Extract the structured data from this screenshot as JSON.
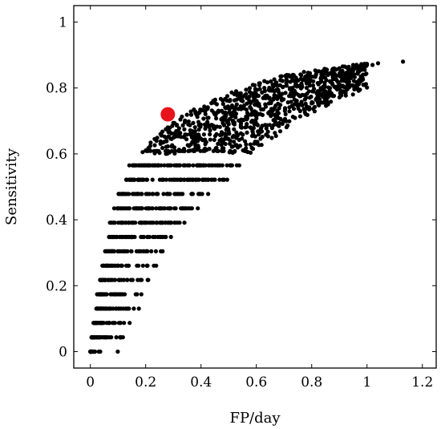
{
  "chart_data": {
    "type": "scatter",
    "title": "",
    "xlabel": "FP/day",
    "ylabel": "Sensitivity",
    "xlim": [
      -0.06,
      1.25
    ],
    "ylim": [
      -0.05,
      1.05
    ],
    "xticks": [
      0,
      0.2,
      0.4,
      0.6,
      0.8,
      1,
      1.2
    ],
    "yticks": [
      0,
      0.2,
      0.4,
      0.6,
      0.8,
      1
    ],
    "xtick_labels": [
      "0",
      "0.2",
      "0.4",
      "0.6",
      "0.8",
      "1",
      "1.2"
    ],
    "ytick_labels": [
      "0",
      "0.2",
      "0.4",
      "0.6",
      "0.8",
      "1"
    ],
    "grid": false,
    "legend": "none",
    "series": [
      {
        "marker": "small-dot",
        "color": "#000000",
        "description_points": "dense cloud; approximate upper envelope listed",
        "envelope_upper": [
          [
            0.0,
            0.0
          ],
          [
            0.03,
            0.2
          ],
          [
            0.08,
            0.42
          ],
          [
            0.14,
            0.55
          ],
          [
            0.2,
            0.62
          ],
          [
            0.3,
            0.7
          ],
          [
            0.4,
            0.75
          ],
          [
            0.55,
            0.8
          ],
          [
            0.7,
            0.84
          ],
          [
            0.85,
            0.86
          ],
          [
            1.0,
            0.875
          ],
          [
            1.13,
            0.88
          ]
        ],
        "envelope_lower": [
          [
            0.1,
            0.0
          ],
          [
            0.17,
            0.15
          ],
          [
            0.25,
            0.3
          ],
          [
            0.35,
            0.42
          ],
          [
            0.45,
            0.52
          ],
          [
            0.55,
            0.6
          ],
          [
            0.65,
            0.66
          ],
          [
            0.75,
            0.72
          ],
          [
            0.85,
            0.76
          ],
          [
            1.0,
            0.82
          ]
        ]
      },
      {
        "marker": "large-dot",
        "color": "#e8141c",
        "points": [
          [
            0.28,
            0.72
          ]
        ]
      }
    ]
  }
}
